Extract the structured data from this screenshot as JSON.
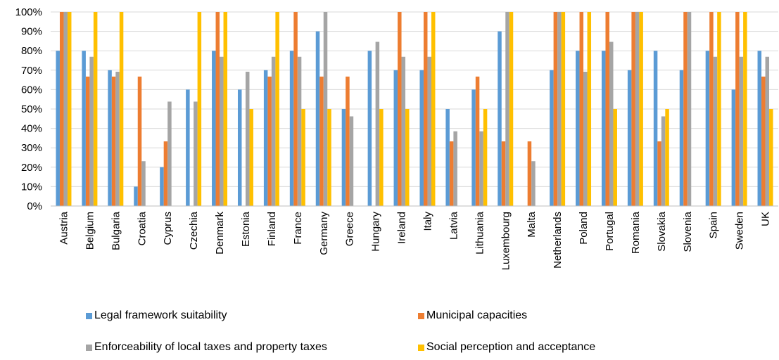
{
  "chart_data": {
    "type": "bar",
    "categories": [
      "Austria",
      "Belgium",
      "Bulgaria",
      "Croatia",
      "Cyprus",
      "Czechia",
      "Denmark",
      "Estonia",
      "Finland",
      "France",
      "Germany",
      "Greece",
      "Hungary",
      "Ireland",
      "Italy",
      "Latvia",
      "Lithuania",
      "Luxembourg",
      "Malta",
      "Netherlands",
      "Poland",
      "Portugal",
      "Romania",
      "Slovakia",
      "Slovenia",
      "Spain",
      "Sweden",
      "UK"
    ],
    "ylim": [
      0,
      100
    ],
    "yticks": [
      "0%",
      "10%",
      "20%",
      "30%",
      "40%",
      "50%",
      "60%",
      "70%",
      "80%",
      "90%",
      "100%"
    ],
    "grid": true,
    "legend_position": "bottom",
    "series": [
      {
        "name": "Legal framework suitability",
        "color": "#5B9BD5",
        "values": [
          80,
          80,
          70,
          10,
          20,
          60,
          80,
          60,
          70,
          80,
          90,
          50,
          80,
          70,
          70,
          50,
          60,
          90,
          0,
          70,
          80,
          80,
          70,
          80,
          70,
          80,
          60,
          80
        ]
      },
      {
        "name": "Municipal capacities",
        "color": "#ED7D31",
        "values": [
          100,
          66.7,
          66.7,
          66.7,
          33.3,
          0,
          100,
          0,
          66.7,
          100,
          66.7,
          66.7,
          0,
          100,
          100,
          33.3,
          66.7,
          33.3,
          33.3,
          100,
          100,
          100,
          100,
          33.3,
          100,
          100,
          100,
          66.7
        ]
      },
      {
        "name": "Enforceability of local taxes and property taxes",
        "color": "#A5A5A5",
        "values": [
          100,
          76.9,
          69.2,
          23.1,
          53.8,
          53.8,
          76.9,
          69.2,
          76.9,
          76.9,
          100,
          46.2,
          84.6,
          76.9,
          76.9,
          38.5,
          38.5,
          100,
          23.1,
          100,
          69.2,
          84.6,
          100,
          46.2,
          100,
          76.9,
          76.9,
          76.9
        ]
      },
      {
        "name": "Social perception and acceptance",
        "color": "#FFC000",
        "values": [
          100,
          100,
          100,
          0,
          0,
          100,
          100,
          50,
          100,
          50,
          50,
          0,
          50,
          50,
          100,
          0,
          50,
          100,
          0,
          100,
          100,
          50,
          100,
          50,
          0,
          100,
          100,
          50
        ]
      }
    ]
  }
}
